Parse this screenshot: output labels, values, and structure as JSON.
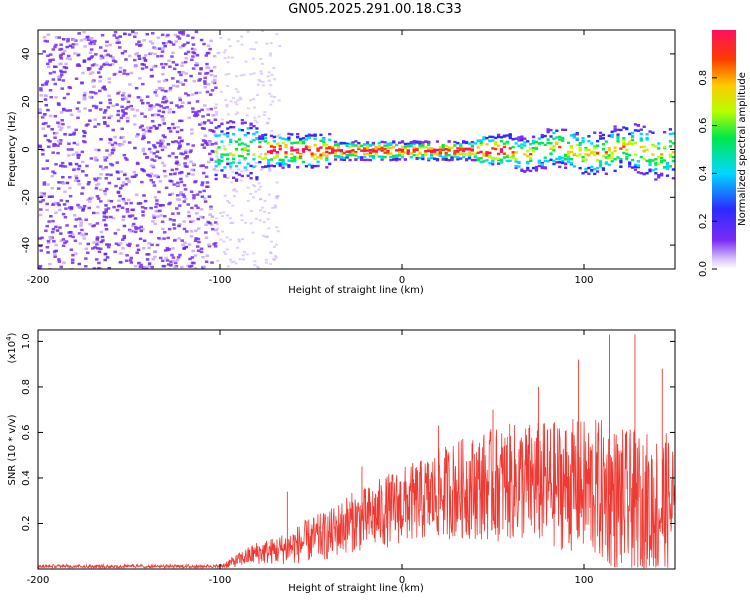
{
  "title": "GN05.2025.291.00.18.C33",
  "colors": {
    "line": "#ee3a33",
    "frame": "#000000",
    "scatter_purple": "#7a2bf0",
    "scatter_light": "#c9a8f7"
  },
  "chart_data": [
    {
      "type": "heatmap",
      "xlabel": "Height of straight line (km)",
      "ylabel": "Frequency (Hz)",
      "xlim": [
        -200,
        150
      ],
      "ylim": [
        -50,
        50
      ],
      "xticks": [
        -200,
        -100,
        0,
        100
      ],
      "yticks": [
        -40,
        -20,
        0,
        20,
        40
      ],
      "colorbar": {
        "label": "Normalized spectral amplitude",
        "range": [
          0,
          1
        ],
        "ticks": [
          "0.0",
          "0.2",
          "0.4",
          "0.6",
          "0.8"
        ]
      },
      "features": {
        "noise_region_x": [
          -200,
          -103
        ],
        "signal_band_start_x": -103,
        "band_center_hz": 0
      }
    },
    {
      "type": "line",
      "xlabel": "Height of straight line (km)",
      "ylabel": "SNR (10 * v/v)",
      "scale_label": "(x10",
      "scale_exp": "4",
      "xlim": [
        -200,
        150
      ],
      "ylim": [
        0,
        1.05
      ],
      "xticks": [
        -200,
        -100,
        0,
        100
      ],
      "yticks": [
        "0.2",
        "0.4",
        "0.6",
        "0.8",
        "1.0"
      ],
      "series": [
        {
          "name": "SNR",
          "envelope_x": [
            -200,
            -150,
            -100,
            -90,
            -80,
            -70,
            -60,
            -50,
            -40,
            -30,
            -20,
            -10,
            0,
            10,
            20,
            30,
            40,
            50,
            60,
            70,
            80,
            90,
            100,
            110,
            120,
            130,
            140,
            150
          ],
          "envelope_mean": [
            0.01,
            0.01,
            0.01,
            0.04,
            0.07,
            0.08,
            0.1,
            0.13,
            0.15,
            0.2,
            0.22,
            0.25,
            0.28,
            0.3,
            0.33,
            0.35,
            0.36,
            0.37,
            0.38,
            0.38,
            0.37,
            0.37,
            0.36,
            0.34,
            0.3,
            0.28,
            0.27,
            0.28
          ],
          "envelope_amp": [
            0.01,
            0.01,
            0.01,
            0.03,
            0.05,
            0.06,
            0.08,
            0.1,
            0.11,
            0.13,
            0.14,
            0.16,
            0.17,
            0.18,
            0.2,
            0.22,
            0.23,
            0.25,
            0.26,
            0.27,
            0.28,
            0.29,
            0.3,
            0.32,
            0.32,
            0.33,
            0.33,
            0.32
          ],
          "peaks": [
            {
              "x": 114,
              "y": 1.03
            },
            {
              "x": 128,
              "y": 1.03
            },
            {
              "x": 97,
              "y": 0.92
            },
            {
              "x": 143,
              "y": 0.88
            },
            {
              "x": 75,
              "y": 0.8
            },
            {
              "x": 50,
              "y": 0.7
            },
            {
              "x": 20,
              "y": 0.63
            },
            {
              "x": -63,
              "y": 0.34
            },
            {
              "x": -22,
              "y": 0.45
            }
          ]
        }
      ]
    }
  ]
}
